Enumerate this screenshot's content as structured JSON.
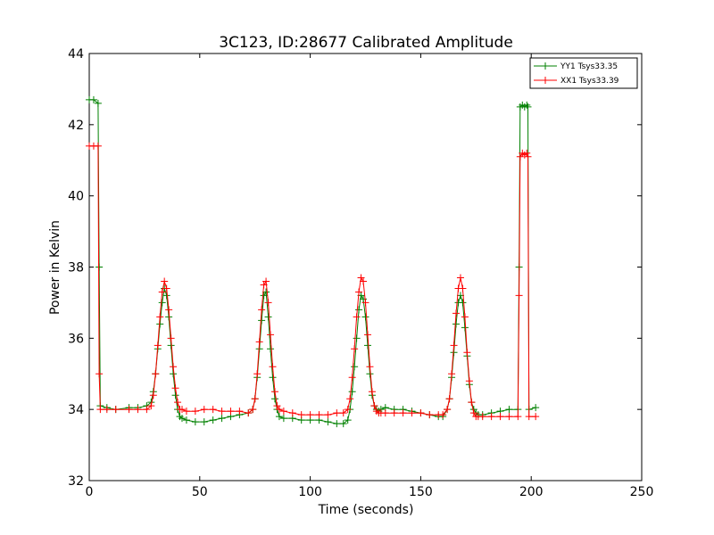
{
  "chart_data": {
    "type": "line",
    "title": "3C123, ID:28677 Calibrated Amplitude",
    "xlabel": "Time (seconds)",
    "ylabel": "Power in Kelvin",
    "xlim": [
      0,
      250
    ],
    "ylim": [
      32,
      44
    ],
    "xticks": [
      0,
      50,
      100,
      150,
      200,
      250
    ],
    "yticks": [
      32,
      34,
      36,
      38,
      40,
      42,
      44
    ],
    "grid": false,
    "legend_position": "top-right",
    "markers": "+",
    "series": [
      {
        "name": "YY1 Tsys33.35",
        "color": "#008000",
        "x": [
          0,
          2,
          4,
          4.5,
          5,
          8,
          12,
          18,
          22,
          26,
          28,
          29,
          30,
          31,
          32,
          33,
          34,
          35,
          36,
          37,
          38,
          39,
          40,
          41,
          42,
          44,
          48,
          52,
          56,
          60,
          64,
          68,
          72,
          74,
          75,
          76,
          77,
          78,
          79,
          80,
          81,
          82,
          83,
          84,
          85,
          86,
          88,
          92,
          96,
          100,
          104,
          108,
          112,
          115,
          117,
          118,
          119,
          120,
          121,
          122,
          123,
          124,
          125,
          126,
          127,
          128,
          129,
          130,
          131,
          132,
          134,
          138,
          142,
          146,
          150,
          154,
          158,
          160,
          162,
          163,
          164,
          165,
          166,
          167,
          168,
          169,
          170,
          171,
          172,
          173,
          174,
          175,
          176,
          178,
          182,
          186,
          190,
          194,
          194.5,
          195,
          196,
          197,
          198,
          198.5,
          199,
          202
        ],
        "y": [
          42.7,
          42.7,
          42.6,
          38.0,
          34.1,
          34.05,
          34.0,
          34.05,
          34.05,
          34.1,
          34.2,
          34.5,
          35.0,
          35.7,
          36.4,
          37.0,
          37.4,
          37.2,
          36.6,
          35.8,
          35.0,
          34.4,
          34.0,
          33.8,
          33.75,
          33.7,
          33.65,
          33.65,
          33.7,
          33.75,
          33.8,
          33.85,
          33.9,
          34.0,
          34.3,
          34.9,
          35.7,
          36.5,
          37.2,
          37.3,
          36.6,
          35.7,
          34.9,
          34.3,
          34.0,
          33.8,
          33.75,
          33.75,
          33.7,
          33.7,
          33.7,
          33.65,
          33.6,
          33.6,
          33.7,
          34.0,
          34.5,
          35.2,
          36.0,
          36.8,
          37.2,
          37.1,
          36.6,
          35.8,
          35.0,
          34.4,
          34.1,
          34.0,
          33.95,
          34.0,
          34.05,
          34.0,
          34.0,
          33.95,
          33.9,
          33.85,
          33.8,
          33.8,
          34.0,
          34.3,
          34.9,
          35.6,
          36.4,
          37.0,
          37.2,
          37.0,
          36.3,
          35.5,
          34.7,
          34.2,
          34.0,
          33.9,
          33.85,
          33.85,
          33.9,
          33.95,
          34.0,
          34.0,
          38.0,
          42.5,
          42.55,
          42.5,
          42.55,
          42.5,
          34.0,
          34.05
        ]
      },
      {
        "name": "XX1 Tsys33.39",
        "color": "#ff0000",
        "x": [
          0,
          2,
          4,
          4.5,
          5,
          8,
          12,
          18,
          22,
          26,
          28,
          29,
          30,
          31,
          32,
          33,
          34,
          35,
          36,
          37,
          38,
          39,
          40,
          41,
          42,
          44,
          48,
          52,
          56,
          60,
          64,
          68,
          72,
          74,
          75,
          76,
          77,
          78,
          79,
          80,
          81,
          82,
          83,
          84,
          85,
          86,
          88,
          92,
          96,
          100,
          104,
          108,
          112,
          115,
          117,
          118,
          119,
          120,
          121,
          122,
          123,
          124,
          125,
          126,
          127,
          128,
          129,
          130,
          131,
          132,
          134,
          138,
          142,
          146,
          150,
          154,
          158,
          160,
          162,
          163,
          164,
          165,
          166,
          167,
          168,
          169,
          170,
          171,
          172,
          173,
          174,
          175,
          176,
          178,
          182,
          186,
          190,
          194,
          194.5,
          195,
          196,
          197,
          198,
          198.5,
          199,
          202
        ],
        "y": [
          41.4,
          41.4,
          41.4,
          35.0,
          34.0,
          34.0,
          34.0,
          34.0,
          34.0,
          34.0,
          34.1,
          34.4,
          35.0,
          35.8,
          36.6,
          37.3,
          37.6,
          37.4,
          36.8,
          36.0,
          35.2,
          34.6,
          34.2,
          34.0,
          34.0,
          33.95,
          33.95,
          34.0,
          34.0,
          33.95,
          33.95,
          33.95,
          33.9,
          34.0,
          34.3,
          35.0,
          35.9,
          36.8,
          37.5,
          37.6,
          37.0,
          36.1,
          35.2,
          34.5,
          34.1,
          34.0,
          33.95,
          33.9,
          33.85,
          33.85,
          33.85,
          33.85,
          33.9,
          33.9,
          34.0,
          34.3,
          34.9,
          35.7,
          36.6,
          37.3,
          37.7,
          37.6,
          37.0,
          36.1,
          35.2,
          34.5,
          34.1,
          33.95,
          33.9,
          33.9,
          33.9,
          33.9,
          33.9,
          33.9,
          33.9,
          33.85,
          33.85,
          33.85,
          34.0,
          34.3,
          35.0,
          35.8,
          36.7,
          37.4,
          37.7,
          37.4,
          36.6,
          35.6,
          34.8,
          34.2,
          33.9,
          33.8,
          33.8,
          33.8,
          33.8,
          33.8,
          33.8,
          33.8,
          37.2,
          41.1,
          41.2,
          41.15,
          41.2,
          41.1,
          33.8,
          33.8
        ]
      }
    ]
  }
}
